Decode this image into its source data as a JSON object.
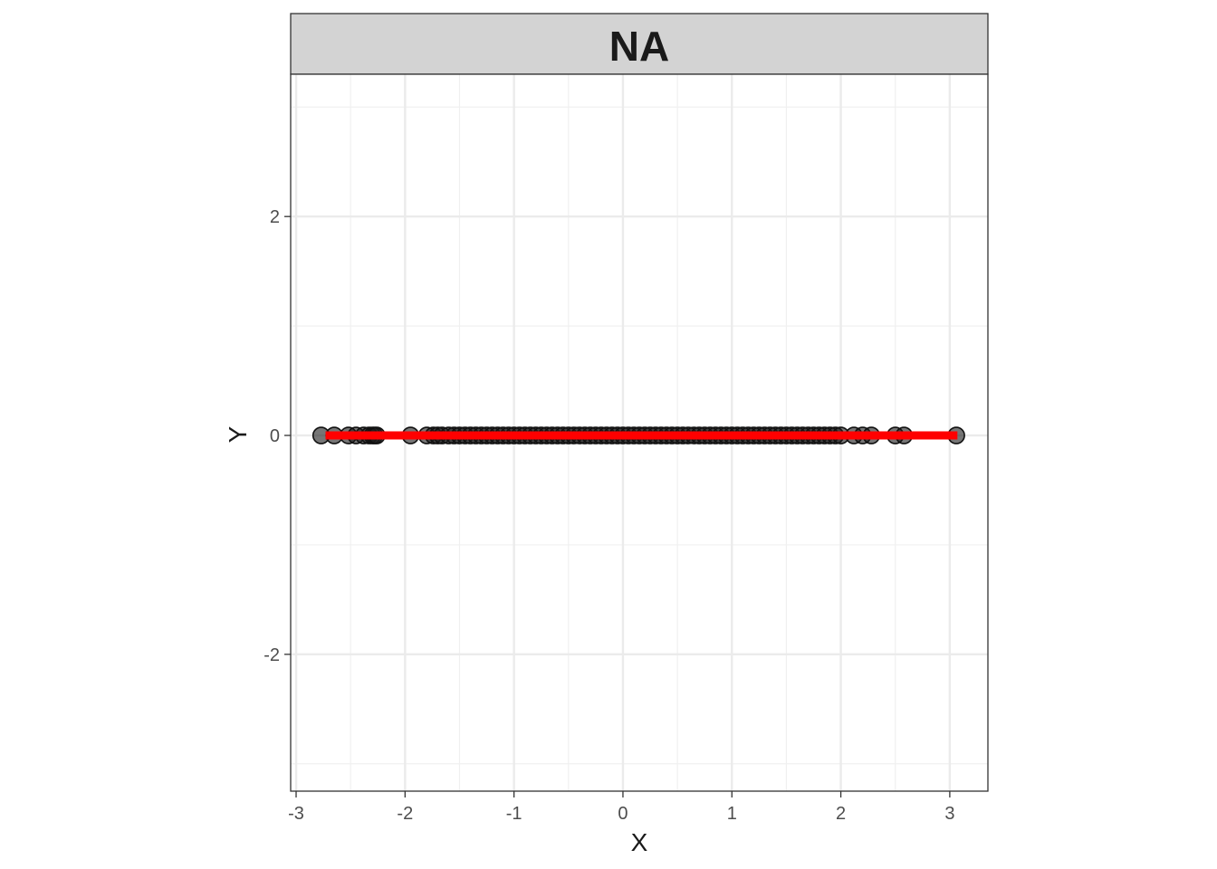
{
  "chart_data": {
    "type": "scatter",
    "facet_label": "NA",
    "xlabel": "X",
    "ylabel": "Y",
    "xlim": [
      -3.05,
      3.35
    ],
    "ylim": [
      -3.25,
      3.3
    ],
    "x_ticks": [
      -3,
      -2,
      -1,
      0,
      1,
      2,
      3
    ],
    "y_ticks": [
      -2,
      0,
      2
    ],
    "x_tick_labels": [
      "-3",
      "-2",
      "-1",
      "0",
      "1",
      "2",
      "3"
    ],
    "y_tick_labels": [
      "-2",
      "0",
      "2"
    ],
    "grid": true,
    "point_color": "#1a1a1a",
    "fit_line_color": "#ff0000",
    "fit_line": {
      "x": [
        -2.73,
        3.07
      ],
      "y": [
        0,
        0
      ]
    },
    "points": {
      "x": [
        -2.77,
        -2.65,
        -2.52,
        -2.45,
        -2.38,
        -2.33,
        -2.3,
        -2.28,
        -2.26,
        -1.95,
        -1.8,
        -1.74,
        -1.7,
        -1.66,
        -1.6,
        -1.55,
        -1.5,
        -1.45,
        -1.4,
        -1.35,
        -1.3,
        -1.25,
        -1.2,
        -1.15,
        -1.1,
        -1.05,
        -1.0,
        -0.95,
        -0.9,
        -0.85,
        -0.8,
        -0.75,
        -0.7,
        -0.65,
        -0.6,
        -0.55,
        -0.5,
        -0.45,
        -0.4,
        -0.35,
        -0.3,
        -0.25,
        -0.2,
        -0.15,
        -0.1,
        -0.05,
        0.0,
        0.05,
        0.1,
        0.15,
        0.2,
        0.25,
        0.3,
        0.35,
        0.4,
        0.45,
        0.5,
        0.55,
        0.6,
        0.65,
        0.7,
        0.75,
        0.8,
        0.85,
        0.9,
        0.95,
        1.0,
        1.05,
        1.1,
        1.15,
        1.2,
        1.25,
        1.3,
        1.35,
        1.4,
        1.45,
        1.5,
        1.55,
        1.6,
        1.65,
        1.7,
        1.75,
        1.8,
        1.85,
        1.9,
        1.95,
        2.0,
        2.12,
        2.2,
        2.28,
        2.5,
        2.58,
        3.06
      ],
      "y": [
        0,
        0,
        0,
        0,
        0,
        0,
        0,
        0,
        0,
        0,
        0,
        0,
        0,
        0,
        0,
        0,
        0,
        0,
        0,
        0,
        0,
        0,
        0,
        0,
        0,
        0,
        0,
        0,
        0,
        0,
        0,
        0,
        0,
        0,
        0,
        0,
        0,
        0,
        0,
        0,
        0,
        0,
        0,
        0,
        0,
        0,
        0,
        0,
        0,
        0,
        0,
        0,
        0,
        0,
        0,
        0,
        0,
        0,
        0,
        0,
        0,
        0,
        0,
        0,
        0,
        0,
        0,
        0,
        0,
        0,
        0,
        0,
        0,
        0,
        0,
        0,
        0,
        0,
        0,
        0,
        0,
        0,
        0,
        0,
        0,
        0,
        0,
        0,
        0,
        0,
        0,
        0,
        0
      ]
    }
  }
}
